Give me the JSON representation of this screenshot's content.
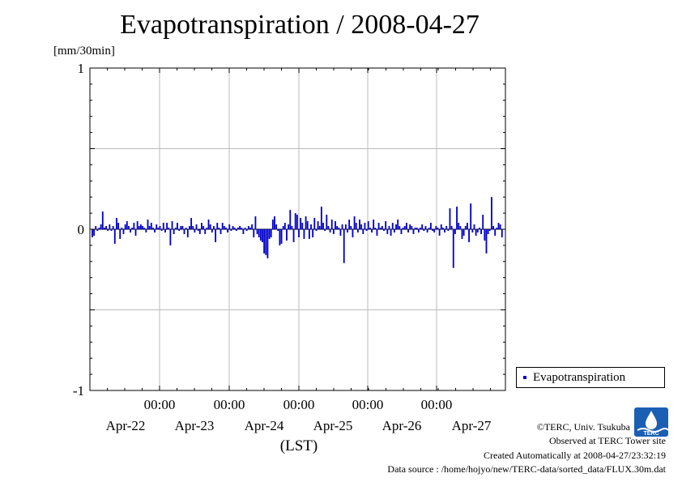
{
  "header": {
    "title": "Evapotranspiration / 2008-04-27",
    "unit": "[mm/30min]"
  },
  "legend": {
    "label": "Evapotranspiration",
    "color": "#0000cc"
  },
  "footer": {
    "copyright": "©TERC, Univ. Tsukuba",
    "site": "Observed at TERC Tower site",
    "created": "Created Automatically at 2008-04-27/23:32:19",
    "source": "Data source : /home/hojyo/new/TERC-data/sorted_data/FLUX.30m.dat"
  },
  "logo": {
    "icon": "terc-logo-icon",
    "text": "TERC",
    "color": "#1a5fb4"
  },
  "chart_data": {
    "type": "bar",
    "title": "Evapotranspiration / 2008-04-27",
    "ylabel": "[mm/30min]",
    "xlabel": "(LST)",
    "ylim": [
      -1,
      1
    ],
    "yticks": [
      "1",
      "0",
      "-1"
    ],
    "grid": true,
    "legend_position": "right",
    "x_time_labels": [
      "00:00",
      "00:00",
      "00:00",
      "00:00",
      "00:00"
    ],
    "x_date_labels": [
      "Apr-22",
      "Apr-23",
      "Apr-24",
      "Apr-25",
      "Apr-26",
      "Apr-27"
    ],
    "x_range": [
      "2008-04-21 09:30",
      "2008-04-27 23:30"
    ],
    "series": [
      {
        "name": "Evapotranspiration",
        "color": "#0000cc",
        "values": [
          -0.05,
          -0.04,
          0.02,
          -0.01,
          0.01,
          0.03,
          0.11,
          0.01,
          0.02,
          -0.01,
          0.03,
          -0.01,
          0.02,
          -0.09,
          0.07,
          0.04,
          -0.06,
          0.01,
          -0.03,
          0.03,
          0.05,
          0.02,
          -0.02,
          0.01,
          0.04,
          -0.04,
          0.05,
          0.02,
          0.03,
          0.02,
          0.01,
          -0.02,
          0.06,
          0.02,
          0.04,
          0.01,
          -0.02,
          0.03,
          0.01,
          0.02,
          -0.01,
          0.04,
          -0.02,
          0.04,
          0.01,
          -0.1,
          0.05,
          -0.03,
          0.01,
          0.04,
          -0.01,
          0.02,
          0.02,
          -0.03,
          0.01,
          -0.05,
          0.02,
          0.07,
          0.02,
          -0.02,
          0.03,
          -0.01,
          -0.03,
          0.04,
          0.02,
          -0.03,
          0.01,
          0.06,
          0.03,
          -0.02,
          0.02,
          -0.08,
          0.04,
          0.01,
          -0.03,
          0.04,
          0.02,
          0.01,
          -0.02,
          0.03,
          -0.01,
          0.02,
          0.01,
          -0.01,
          0.01,
          0.02,
          0.01,
          -0.03,
          0.01,
          -0.01,
          0.02,
          0.01,
          0.03,
          -0.05,
          0.08,
          -0.03,
          -0.05,
          -0.07,
          -0.08,
          -0.15,
          -0.16,
          -0.18,
          -0.06,
          -0.05,
          0.06,
          0.08,
          0.03,
          -0.01,
          -0.1,
          -0.09,
          0.02,
          0.04,
          -0.07,
          0.03,
          0.12,
          0.02,
          -0.08,
          0.1,
          0.09,
          -0.05,
          0.07,
          0.04,
          -0.06,
          0.08,
          0.05,
          -0.06,
          0.03,
          -0.05,
          0.07,
          -0.01,
          0.05,
          0.02,
          0.14,
          0.04,
          -0.01,
          0.09,
          0.02,
          -0.02,
          0.06,
          -0.03,
          0.05,
          0.02,
          0.01,
          -0.04,
          0.03,
          -0.21,
          0.03,
          -0.02,
          0.06,
          0.02,
          -0.05,
          0.08,
          0.04,
          -0.02,
          0.06,
          0.03,
          -0.03,
          0.04,
          -0.01,
          0.05,
          0.01,
          -0.02,
          0.06,
          0.01,
          -0.04,
          0.04,
          0.01,
          0.02,
          -0.01,
          0.05,
          -0.03,
          0.02,
          -0.04,
          0.04,
          -0.02,
          0.03,
          0.06,
          0.02,
          -0.03,
          0.01,
          0.02,
          0.04,
          -0.02,
          0.03,
          0.02,
          -0.03,
          0.01,
          0.01,
          -0.02,
          0.01,
          0.03,
          -0.01,
          0.02,
          -0.02,
          0.01,
          0.04,
          -0.01,
          -0.02,
          0.02,
          0.01,
          -0.04,
          0.03,
          0.01,
          -0.02,
          0.02,
          -0.01,
          0.13,
          0.02,
          -0.24,
          -0.03,
          0.14,
          0.04,
          0.02,
          -0.06,
          -0.04,
          0.02,
          0.04,
          -0.08,
          0.16,
          -0.02,
          0.03,
          -0.04,
          -0.02,
          0.01,
          -0.03,
          0.09,
          -0.07,
          -0.15,
          -0.03,
          -0.01,
          0.2,
          0.02,
          -0.04,
          0.01,
          0.04,
          0.03,
          -0.05
        ]
      }
    ]
  }
}
